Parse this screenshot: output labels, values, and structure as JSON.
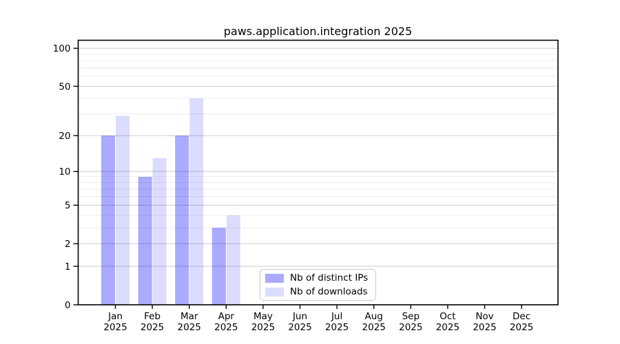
{
  "chart_data": {
    "type": "bar",
    "title": "paws.application.integration 2025",
    "categories": [
      "Jan 2025",
      "Feb 2025",
      "Mar 2025",
      "Apr 2025",
      "May 2025",
      "Jun 2025",
      "Jul 2025",
      "Aug 2025",
      "Sep 2025",
      "Oct 2025",
      "Nov 2025",
      "Dec 2025"
    ],
    "series": [
      {
        "name": "Nb of distinct IPs",
        "color": "#aaaaff",
        "values": [
          20,
          9,
          20,
          3,
          0,
          0,
          0,
          0,
          0,
          0,
          0,
          0
        ]
      },
      {
        "name": "Nb of downloads",
        "color": "#dcdcff",
        "values": [
          29,
          13,
          40,
          4,
          0,
          0,
          0,
          0,
          0,
          0,
          0,
          0
        ]
      }
    ],
    "xlabel": "",
    "ylabel": "",
    "y_axis": {
      "scale": "log1p",
      "tick_values": [
        0,
        1,
        2,
        5,
        10,
        20,
        50,
        100
      ],
      "minor_gridline_values": [
        3,
        4,
        6,
        7,
        8,
        9,
        30,
        40,
        60,
        70,
        80,
        90
      ],
      "top_value": 114
    },
    "grid": "on",
    "legend_position": "bottom-center",
    "colors": {
      "bar_dark": "#aaaaff",
      "bar_light": "#dcdcff",
      "major_grid": "rgba(0,0,0,0.20)",
      "minor_grid": "rgba(0,0,0,0.075)",
      "spine": "#000000",
      "background": "#ffffff"
    }
  }
}
